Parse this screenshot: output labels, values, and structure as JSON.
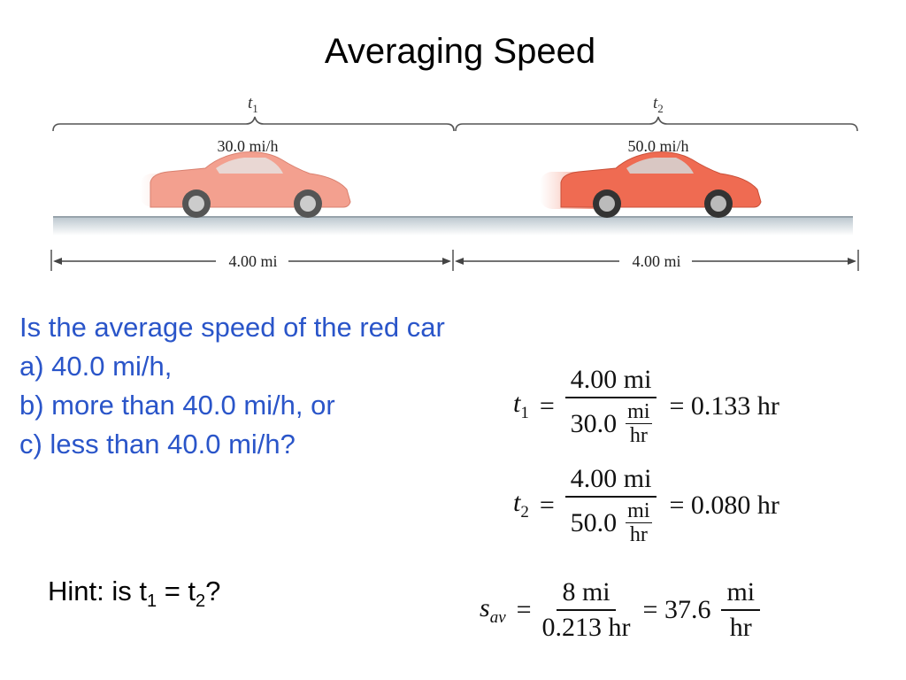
{
  "title": "Averaging Speed",
  "diagram": {
    "t1_label": "t",
    "t1_sub": "1",
    "t2_label": "t",
    "t2_sub": "2",
    "speed1": "30.0 mi/h",
    "speed2": "50.0 mi/h",
    "dist1": "4.00 mi",
    "dist2": "4.00 mi"
  },
  "question": {
    "line1": "Is the average speed of the red car",
    "a": "a) 40.0 mi/h,",
    "b": "b) more than 40.0 mi/h, or",
    "c": "c) less than 40.0 mi/h?"
  },
  "hint": {
    "prefix": "Hint: is t",
    "sub1": "1",
    "middle": " = t",
    "sub2": "2",
    "suffix": "?"
  },
  "equations": {
    "eq1": {
      "lhs": "t",
      "lhs_sub": "1",
      "num": "4.00 mi",
      "den_value": "30.0",
      "den_unit_num": "mi",
      "den_unit_den": "hr",
      "result": "= 0.133  hr"
    },
    "eq2": {
      "lhs": "t",
      "lhs_sub": "2",
      "num": "4.00 mi",
      "den_value": "50.0",
      "den_unit_num": "mi",
      "den_unit_den": "hr",
      "result": "= 0.080  hr"
    },
    "eq3": {
      "lhs": "s",
      "lhs_sub": "av",
      "num": "8  mi",
      "den": "0.213  hr",
      "result": "= 37.6",
      "unit_num": "mi",
      "unit_den": "hr"
    }
  },
  "colors": {
    "question_text": "#2a55c9",
    "car1": "#f3a08f",
    "car2": "#ef6b52",
    "road": "#c9d3da"
  }
}
